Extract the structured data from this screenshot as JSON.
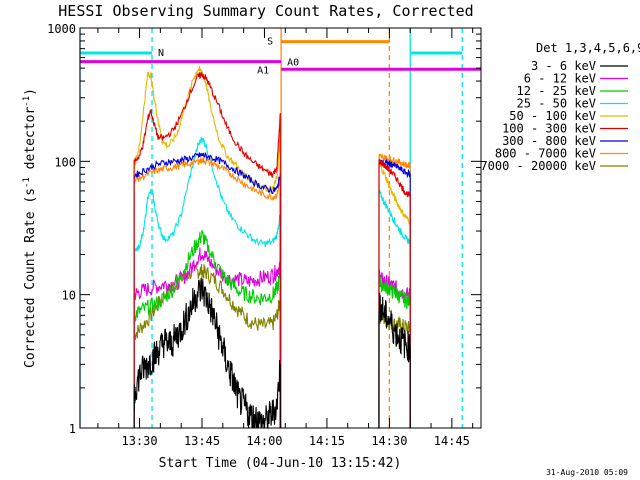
{
  "chart_data": {
    "type": "line",
    "title": "HESSI Observing Summary Count Rates, Corrected",
    "xlabel": "Start Time (04-Jun-10 13:15:42)",
    "ylabel": "Corrected Count Rate (s",
    "ylabel_sup1": "-1",
    "ylabel_mid": " detector",
    "ylabel_sup2": "-1",
    "ylabel_end": ")",
    "yscale": "log",
    "ylim": [
      1,
      1000
    ],
    "xlim_min": [
      15.7,
      60
    ],
    "ytick_labels": [
      "1",
      "10",
      "100",
      "1000"
    ],
    "ytick_values": [
      1,
      10,
      100,
      1000
    ],
    "xtick_labels": [
      "13:30",
      "13:45",
      "14:00",
      "14:15",
      "14:30",
      "14:45"
    ],
    "xtick_values": [
      30,
      45,
      60,
      75,
      90,
      105
    ],
    "grid": false,
    "legend_position": "right",
    "legend_title": "Det 1,3,4,5,6,9",
    "date_stamp": "31-Aug-2010 05:09",
    "series": [
      {
        "name": "3 - 6 keV",
        "color": "#000000",
        "segments": [
          {
            "x": [
              28.7,
              29,
              30,
              31,
              32,
              33,
              34,
              35,
              36,
              37,
              38,
              39,
              40,
              41,
              42,
              43,
              44,
              45,
              46,
              47,
              48,
              49,
              50,
              51,
              52,
              53,
              54,
              55,
              56,
              57,
              58,
              59,
              60,
              61,
              62,
              63,
              63.8
            ],
            "y": [
              1.5,
              2,
              2.5,
              2.8,
              3,
              3.3,
              3.6,
              4,
              4.5,
              4.2,
              4.4,
              5,
              5.5,
              6.5,
              7.5,
              9,
              10.5,
              11,
              9.5,
              8,
              6.5,
              5,
              4,
              3,
              2.5,
              2,
              1.6,
              1.5,
              1.3,
              1.2,
              1.2,
              1.1,
              1.1,
              1.2,
              1.3,
              1.5,
              3
            ]
          },
          {
            "x": [
              87.5,
              88,
              89,
              90,
              91,
              92,
              93,
              94,
              95
            ],
            "y": [
              9,
              8,
              7,
              6.5,
              5.5,
              5,
              4.5,
              4.2,
              4
            ]
          }
        ]
      },
      {
        "name": "6 - 12 keV",
        "color": "#e000e0",
        "segments": [
          {
            "x": [
              28.7,
              30,
              32,
              34,
              36,
              38,
              40,
              42,
              44,
              45,
              46,
              48,
              50,
              52,
              54,
              56,
              58,
              60,
              62,
              63,
              63.8
            ],
            "y": [
              10,
              10.5,
              11,
              11.5,
              12,
              12,
              13,
              15,
              19,
              21,
              19,
              16,
              14,
              13,
              13,
              12.5,
              13,
              13.5,
              14,
              15,
              17
            ]
          },
          {
            "x": [
              87.5,
              88,
              89,
              90,
              91,
              92,
              93,
              94,
              95
            ],
            "y": [
              14,
              13,
              12.5,
              12,
              11.5,
              11,
              10.5,
              10,
              10
            ]
          }
        ]
      },
      {
        "name": "12 - 25 keV",
        "color": "#00cc00",
        "segments": [
          {
            "x": [
              28.7,
              30,
              32,
              34,
              36,
              38,
              40,
              42,
              44,
              45,
              46,
              48,
              50,
              52,
              54,
              56,
              58,
              60,
              62,
              63,
              63.8
            ],
            "y": [
              7,
              7.5,
              8,
              8.5,
              9.5,
              11,
              14,
              19,
              25,
              28,
              24,
              18,
              14,
              12,
              10.5,
              10,
              9.5,
              9.5,
              10,
              11,
              14
            ]
          },
          {
            "x": [
              87.5,
              88,
              89,
              90,
              91,
              92,
              93,
              94,
              95
            ],
            "y": [
              13,
              12,
              11.5,
              11,
              10.5,
              10,
              9.5,
              9,
              9
            ]
          }
        ]
      },
      {
        "name": "25 - 50 keV",
        "color": "#00e5e5",
        "segments": [
          {
            "x": [
              28.7,
              30,
              31,
              32,
              33,
              34,
              35,
              36,
              38,
              40,
              42,
              44,
              45,
              46,
              48,
              50,
              52,
              54,
              56,
              58,
              60,
              62,
              63,
              63.8
            ],
            "y": [
              22,
              23,
              30,
              55,
              60,
              40,
              30,
              26,
              28,
              40,
              75,
              130,
              150,
              130,
              80,
              50,
              38,
              32,
              28,
              25,
              24,
              25,
              28,
              40
            ]
          },
          {
            "x": [
              87.5,
              88,
              89,
              90,
              91,
              92,
              93,
              94,
              95
            ],
            "y": [
              60,
              55,
              48,
              42,
              37,
              32,
              29,
              26,
              25
            ]
          }
        ]
      },
      {
        "name": "50 - 100 keV",
        "color": "#e5b800",
        "segments": [
          {
            "x": [
              28.7,
              29,
              30,
              31,
              32,
              32.7,
              33.5,
              34.5,
              35.5,
              37,
              39,
              41,
              43,
              44,
              45,
              46,
              47,
              49,
              51,
              53,
              55,
              57,
              59,
              61,
              62,
              63,
              63.8
            ],
            "y": [
              90,
              100,
              130,
              250,
              460,
              440,
              300,
              200,
              140,
              130,
              160,
              260,
              420,
              490,
              470,
              380,
              260,
              150,
              110,
              95,
              80,
              72,
              66,
              62,
              62,
              75,
              160
            ]
          },
          {
            "x": [
              87.5,
              88,
              89,
              90,
              91,
              92,
              93,
              94,
              95
            ],
            "y": [
              95,
              90,
              78,
              65,
              55,
              48,
              42,
              38,
              35
            ]
          }
        ]
      },
      {
        "name": "100 - 300 keV",
        "color": "#e00000",
        "segments": [
          {
            "x": [
              28.7,
              30,
              31,
              32,
              32.7,
              33.5,
              34.5,
              36,
              38,
              40,
              42,
              44,
              45,
              46,
              47,
              49,
              51,
              53,
              55,
              57,
              59,
              61,
              62,
              63,
              63.8
            ],
            "y": [
              100,
              110,
              140,
              210,
              240,
              190,
              150,
              150,
              170,
              220,
              320,
              430,
              450,
              420,
              360,
              260,
              180,
              140,
              115,
              100,
              90,
              82,
              80,
              90,
              230
            ]
          },
          {
            "x": [
              87.5,
              88,
              89,
              90,
              91,
              92,
              93,
              94,
              95
            ],
            "y": [
              100,
              98,
              92,
              86,
              80,
              72,
              64,
              58,
              55
            ]
          }
        ]
      },
      {
        "name": "300 - 800 keV",
        "color": "#0000e0",
        "segments": [
          {
            "x": [
              28.7,
              30,
              32,
              34,
              36,
              38,
              40,
              42,
              44,
              45,
              46,
              48,
              50,
              52,
              54,
              56,
              58,
              60,
              62,
              63,
              63.8
            ],
            "y": [
              78,
              82,
              88,
              94,
              98,
              100,
              102,
              105,
              110,
              112,
              110,
              105,
              98,
              90,
              82,
              75,
              68,
              63,
              60,
              62,
              80
            ]
          },
          {
            "x": [
              87.5,
              88,
              89,
              90,
              91,
              92,
              93,
              94,
              95
            ],
            "y": [
              100,
              98,
              97,
              96,
              94,
              90,
              86,
              82,
              80
            ]
          }
        ]
      },
      {
        "name": "800 - 7000 keV",
        "color": "#ff8800",
        "segments": [
          {
            "x": [
              28.7,
              30,
              32,
              34,
              36,
              38,
              40,
              42,
              44,
              45,
              46,
              48,
              50,
              52,
              54,
              56,
              58,
              60,
              62,
              63,
              63.8
            ],
            "y": [
              72,
              75,
              80,
              85,
              88,
              90,
              93,
              96,
              100,
              102,
              100,
              95,
              88,
              80,
              72,
              65,
              60,
              56,
              54,
              56,
              75
            ]
          },
          {
            "x": [
              87.5,
              88,
              89,
              90,
              91,
              92,
              93,
              94,
              95
            ],
            "y": [
              110,
              108,
              106,
              104,
              102,
              100,
              97,
              94,
              92
            ]
          }
        ]
      },
      {
        "name": "7000 - 20000 keV",
        "color": "#808000",
        "segments": [
          {
            "x": [
              28.7,
              30,
              32,
              34,
              36,
              38,
              40,
              42,
              44,
              45,
              46,
              48,
              50,
              52,
              54,
              56,
              58,
              60,
              62,
              63,
              63.8
            ],
            "y": [
              5,
              5.5,
              6.5,
              8,
              10,
              11.5,
              13,
              14.5,
              15,
              15,
              14.5,
              13,
              11,
              9,
              7.5,
              6.5,
              6,
              5.8,
              6,
              7,
              9
            ]
          },
          {
            "x": [
              87.5,
              88,
              89,
              90,
              91,
              92,
              93,
              94,
              95
            ],
            "y": [
              7,
              6.8,
              6.5,
              6.2,
              6,
              6,
              5.8,
              5.7,
              5.5
            ]
          }
        ]
      }
    ],
    "flags": [
      {
        "label": "N",
        "color": "#00e5e5",
        "bar_segments": [
          [
            15.7,
            33
          ],
          [
            95,
            107.5
          ]
        ],
        "bar_y": 650,
        "solid_x": [
          15.7,
          95
        ],
        "dashed_x": [
          33,
          107.5
        ]
      },
      {
        "label": "S",
        "color": "#ff8800",
        "bar_segments": [
          [
            64,
            90
          ]
        ],
        "bar_y": 790,
        "solid_x": [
          64
        ],
        "dashed_x": [
          90
        ]
      },
      {
        "label": "A1",
        "color": "#e000e0",
        "bar_segments": [
          [
            15.7,
            64
          ]
        ],
        "bar_y": 560
      },
      {
        "label": "A0",
        "color": "#e000e0",
        "bar_segments": [
          [
            64,
            112
          ]
        ],
        "bar_y": 490
      }
    ]
  }
}
